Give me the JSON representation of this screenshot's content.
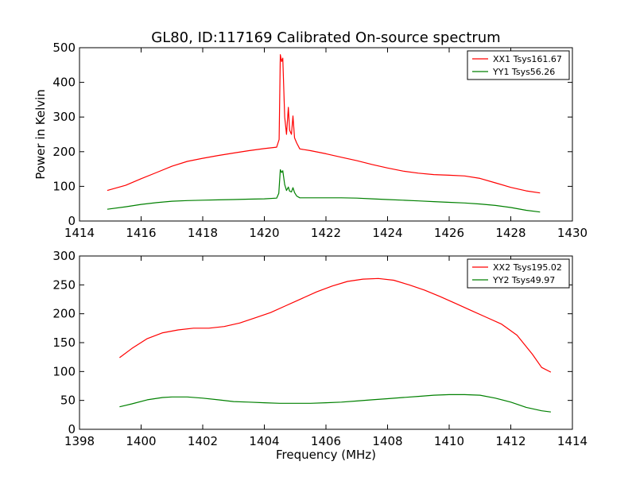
{
  "chart_data": [
    {
      "type": "line",
      "title": "GL80, ID:117169 Calibrated On-source spectrum",
      "xlabel": "",
      "ylabel": "Power in Kelvin",
      "xlim": [
        1414,
        1430
      ],
      "ylim": [
        0,
        500
      ],
      "xticks": [
        "1414",
        "1416",
        "1418",
        "1420",
        "1422",
        "1424",
        "1426",
        "1428",
        "1430"
      ],
      "yticks": [
        "0",
        "100",
        "200",
        "300",
        "400",
        "500"
      ],
      "legend_position": "top-right",
      "grid": false,
      "series": [
        {
          "name": "XX1 Tsys161.67",
          "color": "#ff0000",
          "points": [
            [
              1414.9,
              88
            ],
            [
              1415.5,
              103
            ],
            [
              1416.0,
              122
            ],
            [
              1416.5,
              140
            ],
            [
              1417.0,
              158
            ],
            [
              1417.5,
              172
            ],
            [
              1418.0,
              181
            ],
            [
              1418.5,
              189
            ],
            [
              1419.0,
              196
            ],
            [
              1419.5,
              203
            ],
            [
              1420.0,
              209
            ],
            [
              1420.4,
              213
            ],
            [
              1420.48,
              235
            ],
            [
              1420.52,
              480
            ],
            [
              1420.56,
              460
            ],
            [
              1420.6,
              470
            ],
            [
              1420.66,
              300
            ],
            [
              1420.72,
              250
            ],
            [
              1420.78,
              328
            ],
            [
              1420.82,
              262
            ],
            [
              1420.88,
              250
            ],
            [
              1420.93,
              303
            ],
            [
              1420.98,
              240
            ],
            [
              1421.05,
              225
            ],
            [
              1421.15,
              208
            ],
            [
              1421.5,
              203
            ],
            [
              1422.0,
              194
            ],
            [
              1422.5,
              184
            ],
            [
              1423.0,
              174
            ],
            [
              1423.5,
              163
            ],
            [
              1424.0,
              153
            ],
            [
              1424.5,
              144
            ],
            [
              1425.0,
              138
            ],
            [
              1425.5,
              134
            ],
            [
              1426.0,
              132
            ],
            [
              1426.5,
              130
            ],
            [
              1427.0,
              123
            ],
            [
              1427.5,
              110
            ],
            [
              1428.0,
              97
            ],
            [
              1428.5,
              87
            ],
            [
              1428.95,
              81
            ]
          ]
        },
        {
          "name": "YY1 Tsys56.26",
          "color": "#008000",
          "points": [
            [
              1414.9,
              34
            ],
            [
              1415.5,
              41
            ],
            [
              1416.0,
              48
            ],
            [
              1416.5,
              53
            ],
            [
              1417.0,
              57
            ],
            [
              1417.5,
              59
            ],
            [
              1418.0,
              60
            ],
            [
              1418.5,
              61
            ],
            [
              1419.0,
              62
            ],
            [
              1419.5,
              63
            ],
            [
              1420.0,
              64
            ],
            [
              1420.4,
              66
            ],
            [
              1420.47,
              80
            ],
            [
              1420.52,
              148
            ],
            [
              1420.56,
              140
            ],
            [
              1420.6,
              145
            ],
            [
              1420.66,
              105
            ],
            [
              1420.72,
              88
            ],
            [
              1420.78,
              98
            ],
            [
              1420.82,
              86
            ],
            [
              1420.88,
              84
            ],
            [
              1420.93,
              96
            ],
            [
              1420.98,
              82
            ],
            [
              1421.05,
              72
            ],
            [
              1421.15,
              67
            ],
            [
              1421.5,
              67
            ],
            [
              1422.0,
              67
            ],
            [
              1422.5,
              67
            ],
            [
              1423.0,
              66
            ],
            [
              1423.5,
              64
            ],
            [
              1424.0,
              62
            ],
            [
              1424.5,
              60
            ],
            [
              1425.0,
              58
            ],
            [
              1425.5,
              56
            ],
            [
              1426.0,
              54
            ],
            [
              1426.5,
              52
            ],
            [
              1427.0,
              49
            ],
            [
              1427.5,
              45
            ],
            [
              1428.0,
              39
            ],
            [
              1428.5,
              31
            ],
            [
              1428.95,
              26
            ]
          ]
        }
      ]
    },
    {
      "type": "line",
      "title": "",
      "xlabel": "Frequency (MHz)",
      "ylabel": "",
      "xlim": [
        1398,
        1414
      ],
      "ylim": [
        0,
        300
      ],
      "xticks": [
        "1398",
        "1400",
        "1402",
        "1404",
        "1406",
        "1408",
        "1410",
        "1412",
        "1414"
      ],
      "yticks": [
        "0",
        "50",
        "100",
        "150",
        "200",
        "250",
        "300"
      ],
      "legend_position": "top-right",
      "grid": false,
      "series": [
        {
          "name": "XX2 Tsys195.02",
          "color": "#ff0000",
          "points": [
            [
              1399.3,
              124
            ],
            [
              1399.7,
              140
            ],
            [
              1400.2,
              157
            ],
            [
              1400.7,
              167
            ],
            [
              1401.2,
              172
            ],
            [
              1401.7,
              175
            ],
            [
              1402.2,
              175
            ],
            [
              1402.7,
              178
            ],
            [
              1403.2,
              184
            ],
            [
              1403.7,
              193
            ],
            [
              1404.2,
              202
            ],
            [
              1404.7,
              214
            ],
            [
              1405.2,
              226
            ],
            [
              1405.7,
              238
            ],
            [
              1406.2,
              248
            ],
            [
              1406.7,
              256
            ],
            [
              1407.2,
              260
            ],
            [
              1407.7,
              261
            ],
            [
              1408.2,
              258
            ],
            [
              1408.7,
              250
            ],
            [
              1409.2,
              241
            ],
            [
              1409.7,
              230
            ],
            [
              1410.2,
              218
            ],
            [
              1410.7,
              206
            ],
            [
              1411.2,
              194
            ],
            [
              1411.7,
              182
            ],
            [
              1412.2,
              163
            ],
            [
              1412.7,
              130
            ],
            [
              1413.0,
              107
            ],
            [
              1413.3,
              99
            ]
          ]
        },
        {
          "name": "YY2 Tsys49.97",
          "color": "#008000",
          "points": [
            [
              1399.3,
              39
            ],
            [
              1399.7,
              44
            ],
            [
              1400.2,
              51
            ],
            [
              1400.7,
              55
            ],
            [
              1401.0,
              56
            ],
            [
              1401.5,
              56
            ],
            [
              1402.0,
              54
            ],
            [
              1402.5,
              51
            ],
            [
              1403.0,
              48
            ],
            [
              1403.5,
              47
            ],
            [
              1404.0,
              46
            ],
            [
              1404.5,
              45
            ],
            [
              1405.0,
              45
            ],
            [
              1405.5,
              45
            ],
            [
              1406.0,
              46
            ],
            [
              1406.5,
              47
            ],
            [
              1407.0,
              49
            ],
            [
              1407.5,
              51
            ],
            [
              1408.0,
              53
            ],
            [
              1408.5,
              55
            ],
            [
              1409.0,
              57
            ],
            [
              1409.5,
              59
            ],
            [
              1410.0,
              60
            ],
            [
              1410.5,
              60
            ],
            [
              1411.0,
              59
            ],
            [
              1411.5,
              54
            ],
            [
              1412.0,
              47
            ],
            [
              1412.5,
              38
            ],
            [
              1413.0,
              32
            ],
            [
              1413.3,
              30
            ]
          ]
        }
      ]
    }
  ]
}
